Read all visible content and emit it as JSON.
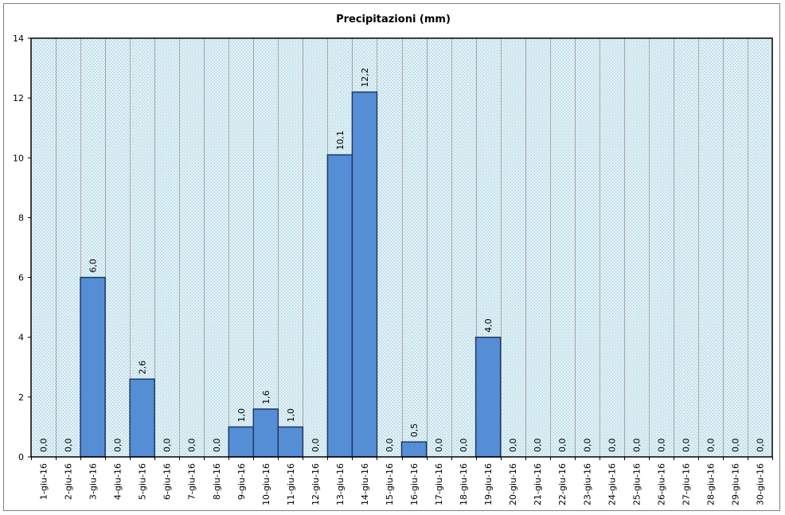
{
  "chart_data": {
    "type": "bar",
    "title": "Precipitazioni (mm)",
    "xlabel": "",
    "ylabel": "",
    "ylim": [
      0,
      14
    ],
    "yticks": [
      0,
      2,
      4,
      6,
      8,
      10,
      12,
      14
    ],
    "grid": true,
    "legend": "none",
    "categories": [
      "1-giu-16",
      "2-giu-16",
      "3-giu-16",
      "4-giu-16",
      "5-giu-16",
      "6-giu-16",
      "7-giu-16",
      "8-giu-16",
      "9-giu-16",
      "10-giu-16",
      "11-giu-16",
      "12-giu-16",
      "13-giu-16",
      "14-giu-16",
      "15-giu-16",
      "16-giu-16",
      "17-giu-16",
      "18-giu-16",
      "19-giu-16",
      "20-giu-16",
      "21-giu-16",
      "22-giu-16",
      "23-giu-16",
      "24-giu-16",
      "25-giu-16",
      "26-giu-16",
      "27-giu-16",
      "28-giu-16",
      "29-giu-16",
      "30-giu-16"
    ],
    "values": [
      0.0,
      0.0,
      6.0,
      0.0,
      2.6,
      0.0,
      0.0,
      0.0,
      1.0,
      1.6,
      1.0,
      0.0,
      10.1,
      12.2,
      0.0,
      0.5,
      0.0,
      0.0,
      4.0,
      0.0,
      0.0,
      0.0,
      0.0,
      0.0,
      0.0,
      0.0,
      0.0,
      0.0,
      0.0,
      0.0
    ],
    "data_labels": [
      "0,0",
      "0,0",
      "6,0",
      "0,0",
      "2,6",
      "0,0",
      "0,0",
      "0,0",
      "1,0",
      "1,6",
      "1,0",
      "0,0",
      "10,1",
      "12,2",
      "0,0",
      "0,5",
      "0,0",
      "0,0",
      "4,0",
      "0,0",
      "0,0",
      "0,0",
      "0,0",
      "0,0",
      "0,0",
      "0,0",
      "0,0",
      "0,0",
      "0,0",
      "0,0"
    ],
    "colors": {
      "bar_fill": "#558ed5",
      "bar_stroke": "#1f3864",
      "plot_bg": "#dbeef4",
      "grid": "#a6a6a6",
      "plot_border": "#000000"
    }
  }
}
